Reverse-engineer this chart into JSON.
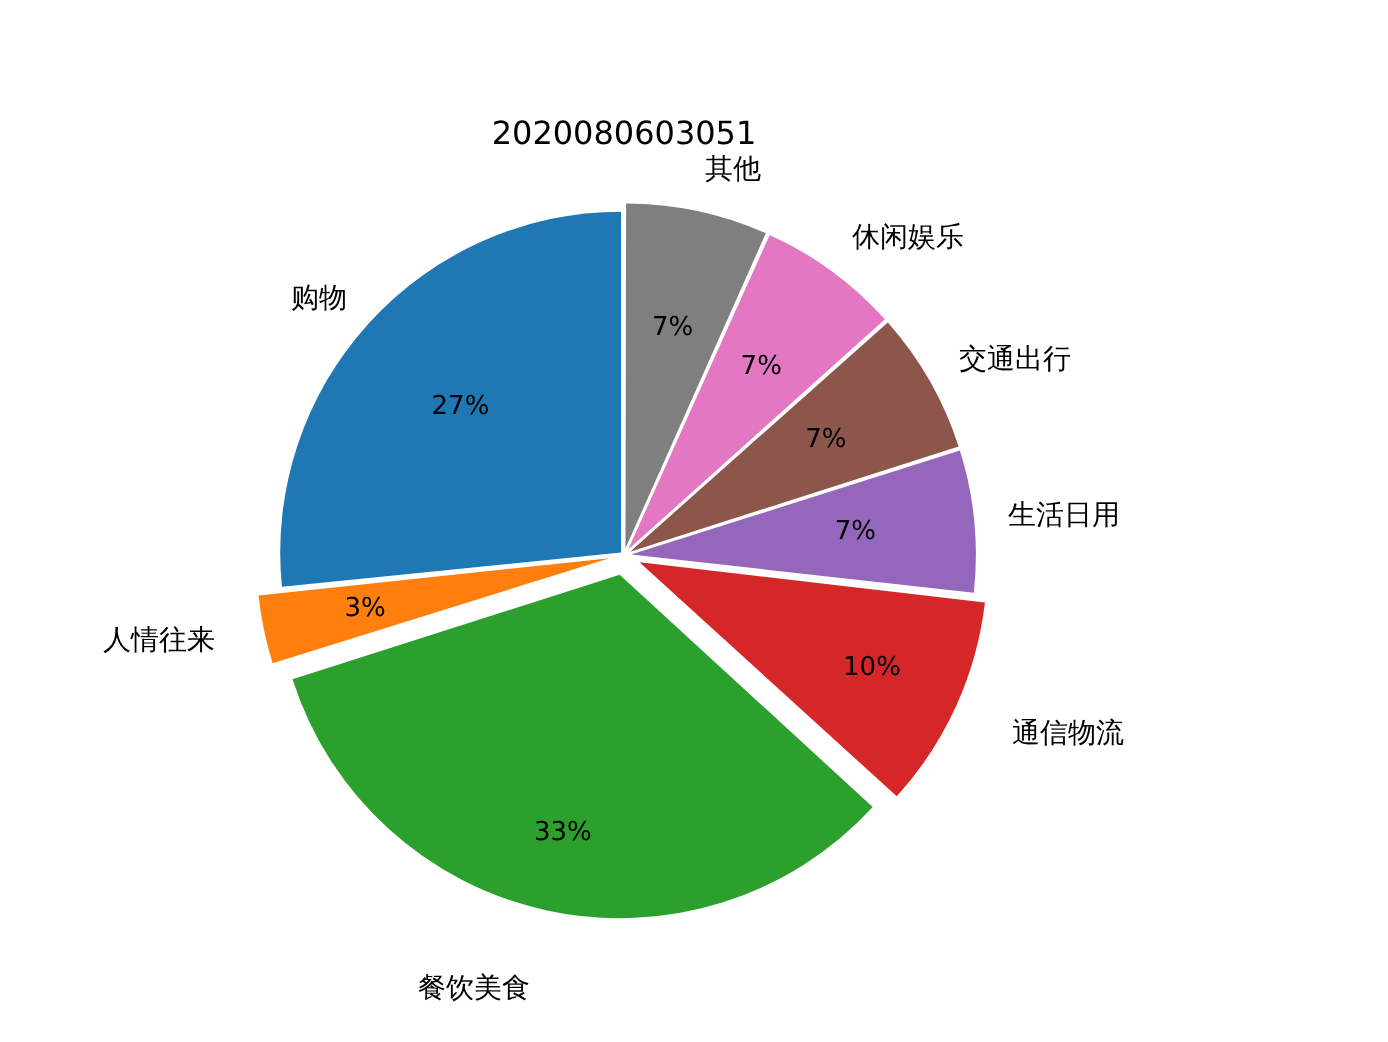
{
  "chart_data": {
    "type": "pie",
    "title": "2020080603051",
    "categories": [
      "购物",
      "人情往来",
      "餐饮美食",
      "通信物流",
      "生活日用",
      "交通出行",
      "休闲娱乐",
      "其他"
    ],
    "values": [
      26.6,
      3.3,
      33.3,
      10,
      6.7,
      6.7,
      6.7,
      6.7
    ],
    "value_labels": [
      "27%",
      "3%",
      "33%",
      "10%",
      "7%",
      "7%",
      "7%",
      "7%"
    ],
    "colors": [
      "#1f77b4",
      "#ff7f0e",
      "#2ca02c",
      "#d62728",
      "#9467bd",
      "#8c564b",
      "#e377c2",
      "#7f7f7f"
    ],
    "legend": false
  }
}
